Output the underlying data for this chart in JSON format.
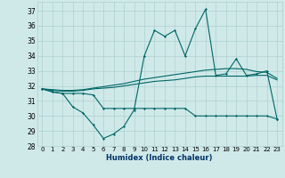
{
  "xlabel": "Humidex (Indice chaleur)",
  "background_color": "#cfe9e9",
  "grid_color": "#b0d0d0",
  "line_color": "#006666",
  "xlim": [
    -0.5,
    23.5
  ],
  "ylim": [
    28,
    37.6
  ],
  "yticks": [
    28,
    29,
    30,
    31,
    32,
    33,
    34,
    35,
    36,
    37
  ],
  "xticks": [
    0,
    1,
    2,
    3,
    4,
    5,
    6,
    7,
    8,
    9,
    10,
    11,
    12,
    13,
    14,
    15,
    16,
    17,
    18,
    19,
    20,
    21,
    22,
    23
  ],
  "series": [
    [
      31.8,
      31.6,
      31.5,
      30.6,
      30.2,
      29.4,
      28.5,
      28.8,
      29.3,
      30.4,
      34.0,
      35.7,
      35.3,
      35.7,
      34.0,
      35.8,
      37.1,
      32.7,
      32.8,
      33.8,
      32.7,
      32.8,
      33.0,
      29.8
    ],
    [
      31.8,
      31.6,
      31.5,
      31.5,
      31.5,
      31.4,
      30.5,
      30.5,
      30.5,
      30.5,
      30.5,
      30.5,
      30.5,
      30.5,
      30.5,
      30.0,
      30.0,
      30.0,
      30.0,
      30.0,
      30.0,
      30.0,
      30.0,
      29.8
    ],
    [
      31.8,
      31.7,
      31.65,
      31.65,
      31.7,
      31.8,
      31.85,
      31.9,
      32.0,
      32.1,
      32.2,
      32.3,
      32.35,
      32.4,
      32.5,
      32.6,
      32.65,
      32.65,
      32.65,
      32.65,
      32.65,
      32.7,
      32.7,
      32.4
    ],
    [
      31.8,
      31.75,
      31.7,
      31.7,
      31.75,
      31.85,
      31.95,
      32.05,
      32.15,
      32.3,
      32.45,
      32.55,
      32.65,
      32.75,
      32.85,
      32.95,
      33.05,
      33.1,
      33.15,
      33.15,
      33.1,
      32.95,
      32.9,
      32.5
    ]
  ],
  "has_markers": [
    true,
    true,
    false,
    false
  ]
}
